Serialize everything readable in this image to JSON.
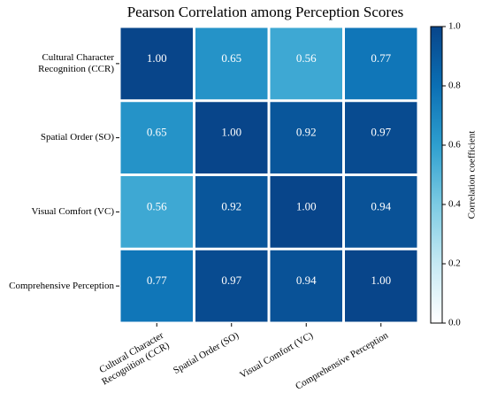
{
  "chart_data": {
    "type": "heatmap",
    "title": "Pearson Correlation among Perception Scores",
    "x_categories": [
      "Cultural Character Recognition (CCR)",
      "Spatial Order (SO)",
      "Visual Comfort (VC)",
      "Comprehensive Perception"
    ],
    "y_categories": [
      "Cultural Character Recognition (CCR)",
      "Spatial Order (SO)",
      "Visual Comfort (VC)",
      "Comprehensive Perception"
    ],
    "values": [
      [
        1,
        0.65,
        0.56,
        0.77
      ],
      [
        0.65,
        1,
        0.92,
        0.97
      ],
      [
        0.56,
        0.92,
        1,
        0.94
      ],
      [
        0.77,
        0.97,
        0.94,
        1
      ]
    ],
    "value_labels": [
      [
        "1.00",
        "0.65",
        "0.56",
        "0.77"
      ],
      [
        "0.65",
        "1.00",
        "0.92",
        "0.97"
      ],
      [
        "0.56",
        "0.92",
        "1.00",
        "0.94"
      ],
      [
        "0.77",
        "0.97",
        "0.94",
        "1.00"
      ]
    ],
    "colormap": [
      "#ffffff",
      "#c6e9f3",
      "#7ccbe3",
      "#2e9fcf",
      "#0b6fb4",
      "#08458a"
    ],
    "colorbar": {
      "label": "Correlation coefficient",
      "ylim": [
        0,
        1
      ],
      "yticks": [
        {
          "value": 0,
          "label": "0.0"
        },
        {
          "value": 0.2,
          "label": "0.2"
        },
        {
          "value": 0.4,
          "label": "0.4"
        },
        {
          "value": 0.6,
          "label": "0.6"
        },
        {
          "value": 0.8,
          "label": "0.8"
        },
        {
          "value": 1,
          "label": "1.0"
        }
      ]
    }
  }
}
